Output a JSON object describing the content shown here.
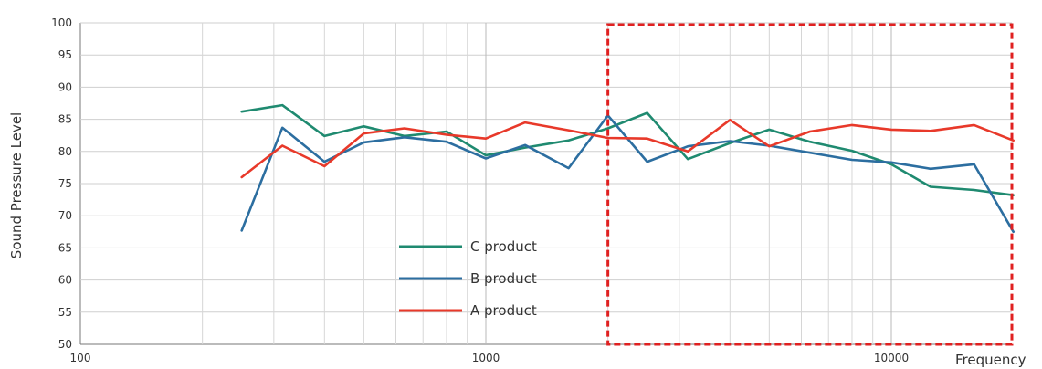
{
  "chart_data": {
    "type": "line",
    "title": "",
    "xlabel": "Frequency",
    "ylabel": "Sound Pressure Level",
    "x_scale": "log",
    "xlim": [
      100,
      20000
    ],
    "ylim": [
      50,
      100
    ],
    "x_tick_labels": [
      "100",
      "1000",
      "10000"
    ],
    "y_ticks": [
      50,
      55,
      60,
      65,
      70,
      75,
      80,
      85,
      90,
      95,
      100
    ],
    "grid": true,
    "legend_position": "bottom-center",
    "x": [
      250,
      315,
      400,
      500,
      630,
      800,
      1000,
      1250,
      1600,
      2000,
      2500,
      3150,
      4000,
      5000,
      6300,
      8000,
      10000,
      12500,
      16000,
      20000
    ],
    "series": [
      {
        "name": "C product",
        "color": "#1f8a70",
        "values": [
          86.2,
          87.2,
          82.4,
          83.9,
          82.4,
          83.1,
          79.4,
          80.6,
          81.7,
          83.6,
          86.0,
          78.8,
          81.3,
          83.4,
          81.5,
          80.1,
          78.0,
          74.5,
          74.0,
          73.2
        ]
      },
      {
        "name": "B product",
        "color": "#2c6ea0",
        "values": [
          67.7,
          83.7,
          78.4,
          81.4,
          82.2,
          81.5,
          78.9,
          81.0,
          77.4,
          85.6,
          78.4,
          80.8,
          81.6,
          80.9,
          79.8,
          78.7,
          78.3,
          77.3,
          78.0,
          67.5
        ]
      },
      {
        "name": "A product",
        "color": "#e8392a",
        "values": [
          76.0,
          80.9,
          77.7,
          82.8,
          83.6,
          82.6,
          82.0,
          84.5,
          83.3,
          82.1,
          82.0,
          80.0,
          84.9,
          80.8,
          83.1,
          84.1,
          83.4,
          83.2,
          84.1,
          81.7
        ]
      }
    ],
    "highlight_region": {
      "x_range": [
        2000,
        20000
      ],
      "y_range": [
        50,
        100
      ],
      "color": "#e02020"
    }
  }
}
